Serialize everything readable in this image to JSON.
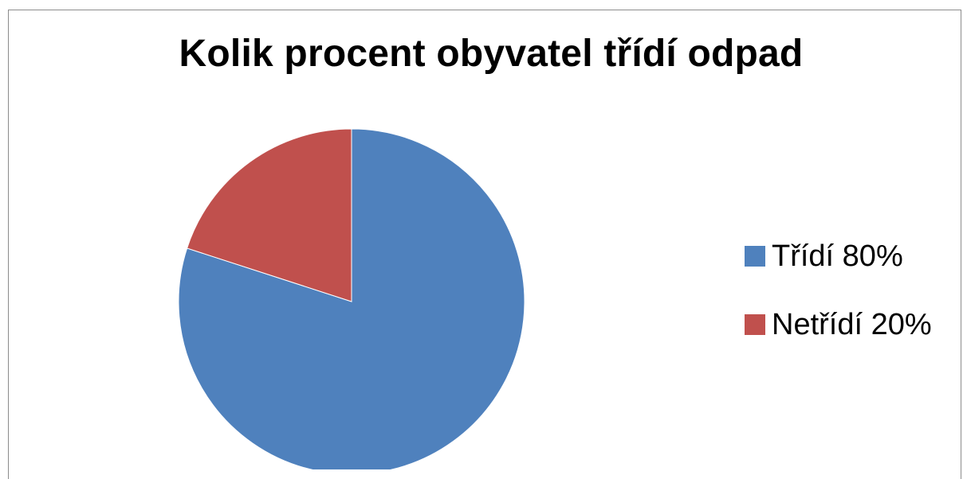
{
  "chart_data": {
    "type": "pie",
    "title": "Kolik procent obyvatel třídí odpad",
    "slices": [
      {
        "name": "Třídí 80%",
        "value": 80,
        "color": "#4f81bd"
      },
      {
        "name": "Netřídí 20%",
        "value": 20,
        "color": "#c0504d"
      }
    ],
    "start_angle_deg": 0,
    "direction": "clockwise",
    "legend_position": "right"
  }
}
